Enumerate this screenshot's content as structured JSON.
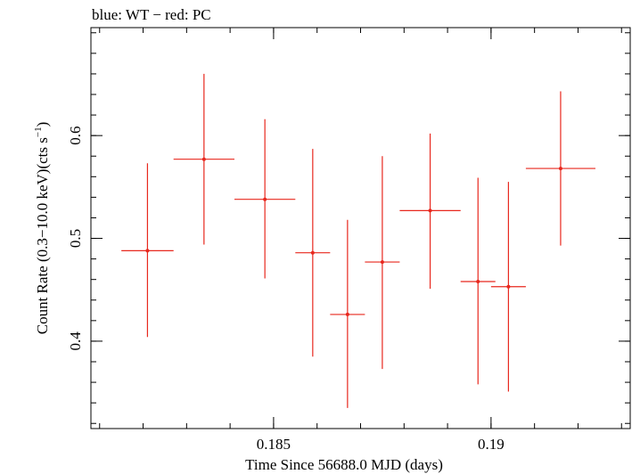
{
  "chart_data": {
    "type": "scatter",
    "title": "blue: WT − red: PC",
    "xlabel": "Time Since 56688.0 MJD (days)",
    "ylabel": "Count Rate (0.3−10.0 keV)(cts s",
    "ylabel_sup": "−1",
    "ylabel_tail": ")",
    "xlim": [
      0.1808,
      0.1932
    ],
    "ylim": [
      0.315,
      0.705
    ],
    "x_ticks": [
      {
        "value": 0.185,
        "label": "0.185"
      },
      {
        "value": 0.19,
        "label": "0.19"
      }
    ],
    "y_ticks": [
      {
        "value": 0.4,
        "label": "0.4"
      },
      {
        "value": 0.5,
        "label": "0.5"
      },
      {
        "value": 0.6,
        "label": "0.6"
      }
    ],
    "grid": false,
    "series": [
      {
        "color": "#e8281e",
        "points": [
          {
            "x": 0.1821,
            "y": 0.488,
            "xerr": 0.0006,
            "ylo": 0.404,
            "yhi": 0.573
          },
          {
            "x": 0.1834,
            "y": 0.577,
            "xerr": 0.0007,
            "ylo": 0.494,
            "yhi": 0.66
          },
          {
            "x": 0.1848,
            "y": 0.538,
            "xerr": 0.0007,
            "ylo": 0.461,
            "yhi": 0.616
          },
          {
            "x": 0.1859,
            "y": 0.486,
            "xerr": 0.0004,
            "ylo": 0.385,
            "yhi": 0.587
          },
          {
            "x": 0.1867,
            "y": 0.426,
            "xerr": 0.0004,
            "ylo": 0.335,
            "yhi": 0.518
          },
          {
            "x": 0.1875,
            "y": 0.477,
            "xerr": 0.0004,
            "ylo": 0.373,
            "yhi": 0.58
          },
          {
            "x": 0.1886,
            "y": 0.527,
            "xerr": 0.0007,
            "ylo": 0.451,
            "yhi": 0.602
          },
          {
            "x": 0.1897,
            "y": 0.458,
            "xerr": 0.0004,
            "ylo": 0.358,
            "yhi": 0.559
          },
          {
            "x": 0.1904,
            "y": 0.453,
            "xerr": 0.0004,
            "ylo": 0.351,
            "yhi": 0.555
          },
          {
            "x": 0.1916,
            "y": 0.568,
            "xerr": 0.0008,
            "ylo": 0.493,
            "yhi": 0.643
          }
        ]
      }
    ]
  }
}
